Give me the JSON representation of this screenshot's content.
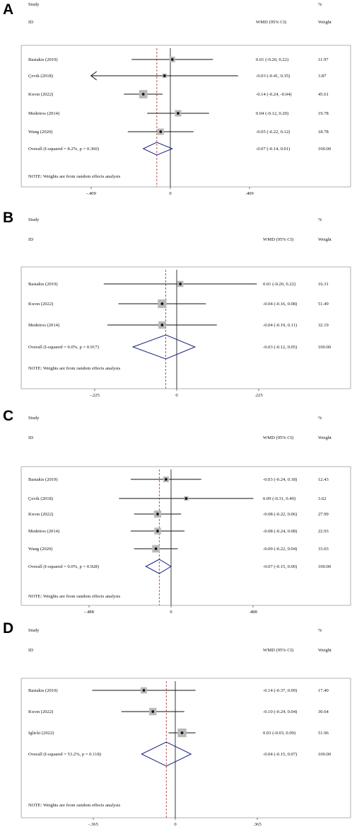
{
  "figure": {
    "headers": {
      "study": "Study",
      "id": "ID",
      "effect": "WMD (95% CI)",
      "pct": "%",
      "weight": "Weight"
    },
    "note": "NOTE: Weights are from random effects analysis"
  },
  "chart_data": [
    {
      "type": "forest",
      "panel": "A",
      "xlim": [
        -0.409,
        0.409
      ],
      "tick_labels": [
        "-.409",
        "0",
        ".409"
      ],
      "null_line": 0,
      "overall_line": -0.07,
      "studies": [
        {
          "label": "Bastakis  (2019)",
          "wmd": 0.01,
          "lo": -0.2,
          "hi": 0.22,
          "ci_text": "0.01 (-0.20, 0.22)",
          "weight": 11.97,
          "weight_text": "11.97"
        },
        {
          "label": "Çevik  (2018)",
          "wmd": -0.03,
          "lo": -0.41,
          "hi": 0.35,
          "ci_text": "-0.03 (-0.41, 0.35)",
          "weight": 3.87,
          "weight_text": "3.87",
          "arrow_left": true
        },
        {
          "label": "Kwon  (2022)",
          "wmd": -0.14,
          "lo": -0.24,
          "hi": -0.04,
          "ci_text": "-0.14 (-0.24, -0.04)",
          "weight": 45.61,
          "weight_text": "45.61"
        },
        {
          "label": "Medeiros  (2014)",
          "wmd": 0.04,
          "lo": -0.12,
          "hi": 0.2,
          "ci_text": "0.04 (-0.12, 0.20)",
          "weight": 19.78,
          "weight_text": "19.78"
        },
        {
          "label": "Wang  (2020)",
          "wmd": -0.05,
          "lo": -0.22,
          "hi": 0.12,
          "ci_text": "-0.05 (-0.22, 0.12)",
          "weight": 18.78,
          "weight_text": "18.78"
        }
      ],
      "overall": {
        "label": "Overall  (I-squared = 8.2%, p = 0.360)",
        "wmd": -0.07,
        "lo": -0.14,
        "hi": 0.01,
        "ci_text": "-0.07 (-0.14, 0.01)",
        "weight_text": "100.00"
      }
    },
    {
      "type": "forest",
      "panel": "B",
      "xlim": [
        -0.225,
        0.225
      ],
      "tick_labels": [
        "-.225",
        "0",
        ".225"
      ],
      "null_line": 0,
      "overall_line": -0.03,
      "studies": [
        {
          "label": "Bastakis  (2019)",
          "wmd": 0.01,
          "lo": -0.2,
          "hi": 0.22,
          "ci_text": "0.01 (-0.20, 0.22)",
          "weight": 16.31,
          "weight_text": "16.31"
        },
        {
          "label": "Kwon  (2022)",
          "wmd": -0.04,
          "lo": -0.16,
          "hi": 0.08,
          "ci_text": "-0.04 (-0.16, 0.08)",
          "weight": 51.49,
          "weight_text": "51.49"
        },
        {
          "label": "Medeiros  (2014)",
          "wmd": -0.04,
          "lo": -0.19,
          "hi": 0.11,
          "ci_text": "-0.04 (-0.19, 0.11)",
          "weight": 32.19,
          "weight_text": "32.19"
        }
      ],
      "overall": {
        "label": "Overall  (I-squared = 0.0%, p = 0.917)",
        "wmd": -0.03,
        "lo": -0.12,
        "hi": 0.05,
        "ci_text": "-0.03 (-0.12, 0.05)",
        "weight_text": "100.00"
      }
    },
    {
      "type": "forest",
      "panel": "C",
      "xlim": [
        -0.488,
        0.488
      ],
      "tick_labels": [
        "-.488",
        "0",
        ".488"
      ],
      "null_line": 0,
      "overall_line": -0.07,
      "studies": [
        {
          "label": "Bastakis  (2019)",
          "wmd": -0.03,
          "lo": -0.24,
          "hi": 0.18,
          "ci_text": "-0.03 (-0.24, 0.18)",
          "weight": 12.43,
          "weight_text": "12.43"
        },
        {
          "label": "Çevik  (2018)",
          "wmd": 0.09,
          "lo": -0.31,
          "hi": 0.49,
          "ci_text": "0.09 (-0.31, 0.49)",
          "weight": 3.62,
          "weight_text": "3.62"
        },
        {
          "label": "Kwon  (2022)",
          "wmd": -0.08,
          "lo": -0.22,
          "hi": 0.06,
          "ci_text": "-0.08 (-0.22, 0.06)",
          "weight": 27.99,
          "weight_text": "27.99"
        },
        {
          "label": "Medeiros  (2014)",
          "wmd": -0.08,
          "lo": -0.24,
          "hi": 0.08,
          "ci_text": "-0.08 (-0.24, 0.08)",
          "weight": 22.93,
          "weight_text": "22.93"
        },
        {
          "label": "Wang  (2020)",
          "wmd": -0.09,
          "lo": -0.22,
          "hi": 0.04,
          "ci_text": "-0.09 (-0.22, 0.04)",
          "weight": 33.03,
          "weight_text": "33.03"
        }
      ],
      "overall": {
        "label": "Overall  (I-squared = 0.0%, p = 0.928)",
        "wmd": -0.07,
        "lo": -0.15,
        "hi": 0.0,
        "ci_text": "-0.07 (-0.15, 0.00)",
        "weight_text": "100.00"
      }
    },
    {
      "type": "forest",
      "panel": "D",
      "xlim": [
        -0.365,
        0.365
      ],
      "tick_labels": [
        "-.365",
        "0",
        ".365"
      ],
      "null_line": 0,
      "overall_line": -0.04,
      "studies": [
        {
          "label": "Bastakis  (2019)",
          "wmd": -0.14,
          "lo": -0.37,
          "hi": 0.09,
          "ci_text": "-0.14 (-0.37, 0.09)",
          "weight": 17.4,
          "weight_text": "17.40"
        },
        {
          "label": "Kwon  (2022)",
          "wmd": -0.1,
          "lo": -0.24,
          "hi": 0.04,
          "ci_text": "-0.10 (-0.24, 0.04)",
          "weight": 30.64,
          "weight_text": "30.64"
        },
        {
          "label": "Iglicki  (2022)",
          "wmd": 0.03,
          "lo": -0.03,
          "hi": 0.09,
          "ci_text": "0.03 (-0.03, 0.09)",
          "weight": 51.96,
          "weight_text": "51.96"
        }
      ],
      "overall": {
        "label": "Overall  (I-squared = 53.2%, p = 0.118)",
        "wmd": -0.04,
        "lo": -0.15,
        "hi": 0.07,
        "ci_text": "-0.04 (-0.15, 0.07)",
        "weight_text": "100.00"
      }
    }
  ]
}
